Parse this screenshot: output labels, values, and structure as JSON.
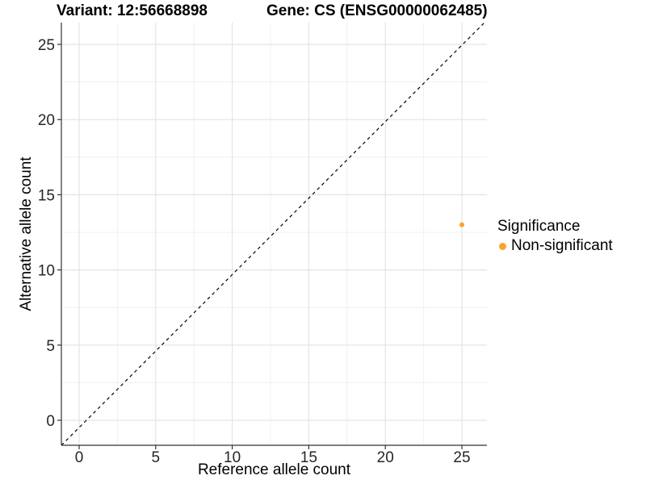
{
  "figure": {
    "title_variant": "Variant: 12:56668898",
    "title_gene": "Gene: CS (ENSG00000062485)"
  },
  "legend": {
    "title": "Significance",
    "items": [
      {
        "label": "Non-significant",
        "color": "#FAA32C"
      }
    ]
  },
  "chart_data": {
    "type": "scatter",
    "title": "Variant: 12:56668898   Gene: CS (ENSG00000062485)",
    "xlabel": "Reference allele count",
    "ylabel": "Alternative allele count",
    "x_ticks": [
      0,
      5,
      10,
      15,
      20,
      25
    ],
    "y_ticks": [
      0,
      5,
      10,
      15,
      20,
      25
    ],
    "minor_ticks": [
      2.5,
      7.5,
      12.5,
      17.5,
      22.5
    ],
    "xlim": [
      -1.2,
      26.6
    ],
    "ylim": [
      -1.7,
      26.4
    ],
    "grid": "major and minor, light gray on white panel",
    "legend_position": "right",
    "legend_title": "Significance",
    "series": [
      {
        "name": "Non-significant",
        "color": "#FAA32C",
        "points": [
          {
            "x": 25,
            "y": 13
          }
        ]
      }
    ],
    "reference_line": {
      "kind": "identity y=x",
      "style": "dashed",
      "color": "#000000"
    }
  },
  "style_colors": {
    "accent_orange": "#FAA32C",
    "grid_major": "#e4e4e4",
    "grid_minor": "#f0f0f0",
    "axis_line": "#333333",
    "tick_text": "#262626"
  }
}
